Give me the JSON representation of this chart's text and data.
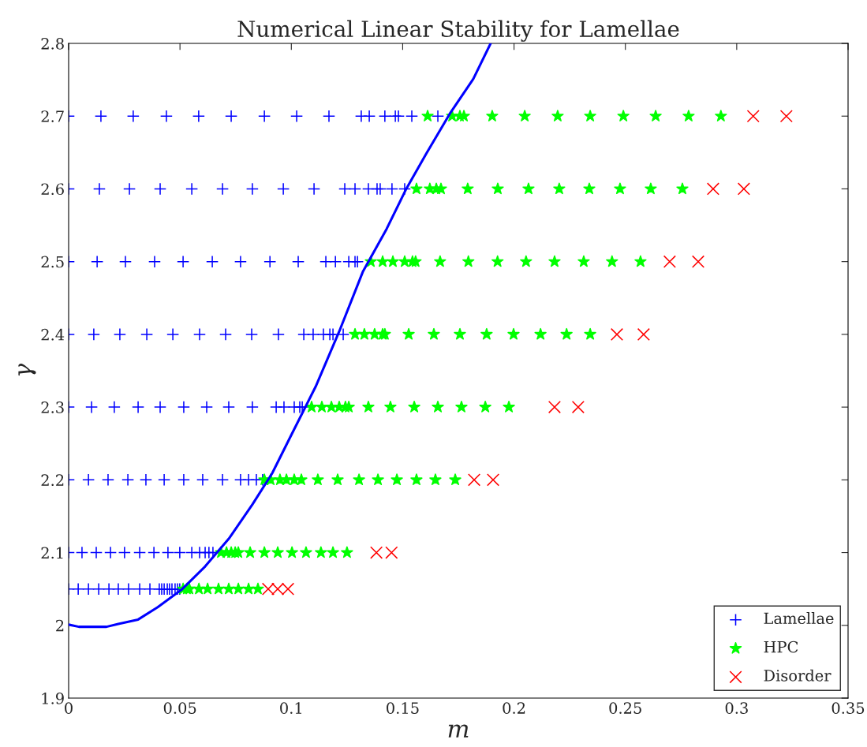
{
  "chart_data": {
    "type": "scatter",
    "title": "Numerical Linear Stability for Lamellae",
    "xlabel": "m",
    "ylabel": "γ",
    "xlim": [
      0,
      0.35
    ],
    "xticks": [
      0,
      0.05,
      0.1,
      0.15,
      0.2,
      0.25,
      0.3,
      0.35
    ],
    "ylim": [
      1.9,
      2.8
    ],
    "yticks": [
      1.9,
      2,
      2.1,
      2.2,
      2.3,
      2.4,
      2.5,
      2.6,
      2.7,
      2.8
    ],
    "grid": false,
    "legend": "bottom right",
    "series": [
      {
        "name": "Lamellae",
        "color": "#0000ff",
        "marker": "plus",
        "x": [
          0,
          0.0145,
          0.029,
          0.0439,
          0.0584,
          0.073,
          0.0879,
          0.1024,
          0.1169,
          0.1314,
          0.135,
          0.142,
          0.1467,
          0.1481,
          0.1541,
          0.1658,
          0,
          0.0138,
          0.0273,
          0.0411,
          0.0553,
          0.0691,
          0.0825,
          0.0964,
          0.1102,
          0.124,
          0.1286,
          0.1346,
          0.1385,
          0.1399,
          0.1452,
          0.1509,
          0,
          0.0128,
          0.0255,
          0.0386,
          0.0514,
          0.0645,
          0.0772,
          0.0904,
          0.1031,
          0.1155,
          0.1198,
          0.1258,
          0.1286,
          0.1297,
          0,
          0.0113,
          0.023,
          0.0351,
          0.0468,
          0.0588,
          0.0705,
          0.0822,
          0.0942,
          0.1056,
          0.1098,
          0.1144,
          0.1173,
          0.1187,
          0.1233,
          0,
          0.0103,
          0.0205,
          0.0312,
          0.0411,
          0.0517,
          0.062,
          0.0719,
          0.0825,
          0.0932,
          0.0967,
          0.1013,
          0.1038,
          0.1049,
          0,
          0.0089,
          0.0177,
          0.0266,
          0.0347,
          0.0429,
          0.0517,
          0.0602,
          0.0691,
          0.0772,
          0.0808,
          0.0843,
          0.0871,
          0,
          0.006,
          0.0124,
          0.0188,
          0.0251,
          0.0319,
          0.0383,
          0.0446,
          0.0499,
          0.0553,
          0.0588,
          0.0613,
          0.063,
          0.0648,
          0,
          0.0043,
          0.0089,
          0.0135,
          0.0181,
          0.0223,
          0.0269,
          0.0319,
          0.0365,
          0.0407,
          0.0418,
          0.0429,
          0.0443,
          0.0453,
          0.0464,
          0.0478,
          0.0489,
          0.0499
        ],
        "values": [
          2.7,
          2.7,
          2.7,
          2.7,
          2.7,
          2.7,
          2.7,
          2.7,
          2.7,
          2.7,
          2.7,
          2.7,
          2.7,
          2.7,
          2.7,
          2.7,
          2.6,
          2.6,
          2.6,
          2.6,
          2.6,
          2.6,
          2.6,
          2.6,
          2.6,
          2.6,
          2.6,
          2.6,
          2.6,
          2.6,
          2.6,
          2.6,
          2.5,
          2.5,
          2.5,
          2.5,
          2.5,
          2.5,
          2.5,
          2.5,
          2.5,
          2.5,
          2.5,
          2.5,
          2.5,
          2.5,
          2.4,
          2.4,
          2.4,
          2.4,
          2.4,
          2.4,
          2.4,
          2.4,
          2.4,
          2.4,
          2.4,
          2.4,
          2.4,
          2.4,
          2.4,
          2.3,
          2.3,
          2.3,
          2.3,
          2.3,
          2.3,
          2.3,
          2.3,
          2.3,
          2.3,
          2.3,
          2.3,
          2.3,
          2.3,
          2.2,
          2.2,
          2.2,
          2.2,
          2.2,
          2.2,
          2.2,
          2.2,
          2.2,
          2.2,
          2.2,
          2.2,
          2.2,
          2.1,
          2.1,
          2.1,
          2.1,
          2.1,
          2.1,
          2.1,
          2.1,
          2.1,
          2.1,
          2.1,
          2.1,
          2.1,
          2.1,
          2.05,
          2.05,
          2.05,
          2.05,
          2.05,
          2.05,
          2.05,
          2.05,
          2.05,
          2.05,
          2.05,
          2.05,
          2.05,
          2.05,
          2.05,
          2.05,
          2.05,
          2.05
        ]
      },
      {
        "name": "HPC",
        "color": "#00ff00",
        "marker": "star",
        "x": [
          0.1612,
          0.1722,
          0.1757,
          0.1775,
          0.1902,
          0.2048,
          0.2196,
          0.2342,
          0.2491,
          0.2636,
          0.2784,
          0.2929,
          0.1562,
          0.1622,
          0.1651,
          0.1672,
          0.1792,
          0.1927,
          0.2065,
          0.2203,
          0.2338,
          0.2476,
          0.2614,
          0.2756,
          0.1357,
          0.141,
          0.1456,
          0.1509,
          0.1544,
          0.1558,
          0.1668,
          0.1795,
          0.1926,
          0.2054,
          0.2182,
          0.2313,
          0.244,
          0.2568,
          0.1286,
          0.1328,
          0.1374,
          0.141,
          0.142,
          0.1527,
          0.164,
          0.1757,
          0.1877,
          0.1998,
          0.2119,
          0.2236,
          0.2342,
          0.1091,
          0.1137,
          0.118,
          0.1215,
          0.1243,
          0.1258,
          0.1346,
          0.1445,
          0.1552,
          0.1658,
          0.1764,
          0.1871,
          0.1977,
          0.0879,
          0.0907,
          0.0949,
          0.0978,
          0.1013,
          0.1045,
          0.1119,
          0.1208,
          0.1304,
          0.1389,
          0.1474,
          0.1562,
          0.1647,
          0.1736,
          0.0684,
          0.0709,
          0.073,
          0.0748,
          0.0762,
          0.0815,
          0.0879,
          0.0939,
          0.1003,
          0.1066,
          0.1133,
          0.1187,
          0.125,
          0.0514,
          0.0531,
          0.0542,
          0.0585,
          0.0624,
          0.0673,
          0.0719,
          0.0762,
          0.0808,
          0.085
        ],
        "values": [
          2.7,
          2.7,
          2.7,
          2.7,
          2.7,
          2.7,
          2.7,
          2.7,
          2.7,
          2.7,
          2.7,
          2.7,
          2.6,
          2.6,
          2.6,
          2.6,
          2.6,
          2.6,
          2.6,
          2.6,
          2.6,
          2.6,
          2.6,
          2.6,
          2.5,
          2.5,
          2.5,
          2.5,
          2.5,
          2.5,
          2.5,
          2.5,
          2.5,
          2.5,
          2.5,
          2.5,
          2.5,
          2.5,
          2.4,
          2.4,
          2.4,
          2.4,
          2.4,
          2.4,
          2.4,
          2.4,
          2.4,
          2.4,
          2.4,
          2.4,
          2.4,
          2.3,
          2.3,
          2.3,
          2.3,
          2.3,
          2.3,
          2.3,
          2.3,
          2.3,
          2.3,
          2.3,
          2.3,
          2.3,
          2.2,
          2.2,
          2.2,
          2.2,
          2.2,
          2.2,
          2.2,
          2.2,
          2.2,
          2.2,
          2.2,
          2.2,
          2.2,
          2.2,
          2.1,
          2.1,
          2.1,
          2.1,
          2.1,
          2.1,
          2.1,
          2.1,
          2.1,
          2.1,
          2.1,
          2.1,
          2.1,
          2.05,
          2.05,
          2.05,
          2.05,
          2.05,
          2.05,
          2.05,
          2.05,
          2.05,
          2.05
        ]
      },
      {
        "name": "Disorder",
        "color": "#ff0000",
        "marker": "cross",
        "x": [
          0.3074,
          0.3223,
          0.2894,
          0.3032,
          0.2699,
          0.2827,
          0.2462,
          0.2582,
          0.2182,
          0.2288,
          0.1821,
          0.1906,
          0.1382,
          0.145,
          0.0896,
          0.0939,
          0.0985
        ],
        "values": [
          2.7,
          2.7,
          2.6,
          2.6,
          2.5,
          2.5,
          2.4,
          2.4,
          2.3,
          2.3,
          2.2,
          2.2,
          2.1,
          2.1,
          2.05,
          2.05,
          2.05
        ]
      },
      {
        "type": "line",
        "color": "#0000ff",
        "marker": "none",
        "x": [
          0,
          0.0046,
          0.017,
          0.0223,
          0.0312,
          0.04,
          0.0507,
          0.0613,
          0.0719,
          0.0825,
          0.0914,
          0.1002,
          0.1109,
          0.1215,
          0.1321,
          0.1428,
          0.1516,
          0.1605,
          0.1711,
          0.1817,
          0.1895
        ],
        "values": [
          2.001,
          1.998,
          1.998,
          2.002,
          2.008,
          2.025,
          2.049,
          2.081,
          2.119,
          2.166,
          2.209,
          2.263,
          2.328,
          2.404,
          2.486,
          2.545,
          2.6,
          2.648,
          2.703,
          2.751,
          2.8
        ]
      }
    ]
  }
}
